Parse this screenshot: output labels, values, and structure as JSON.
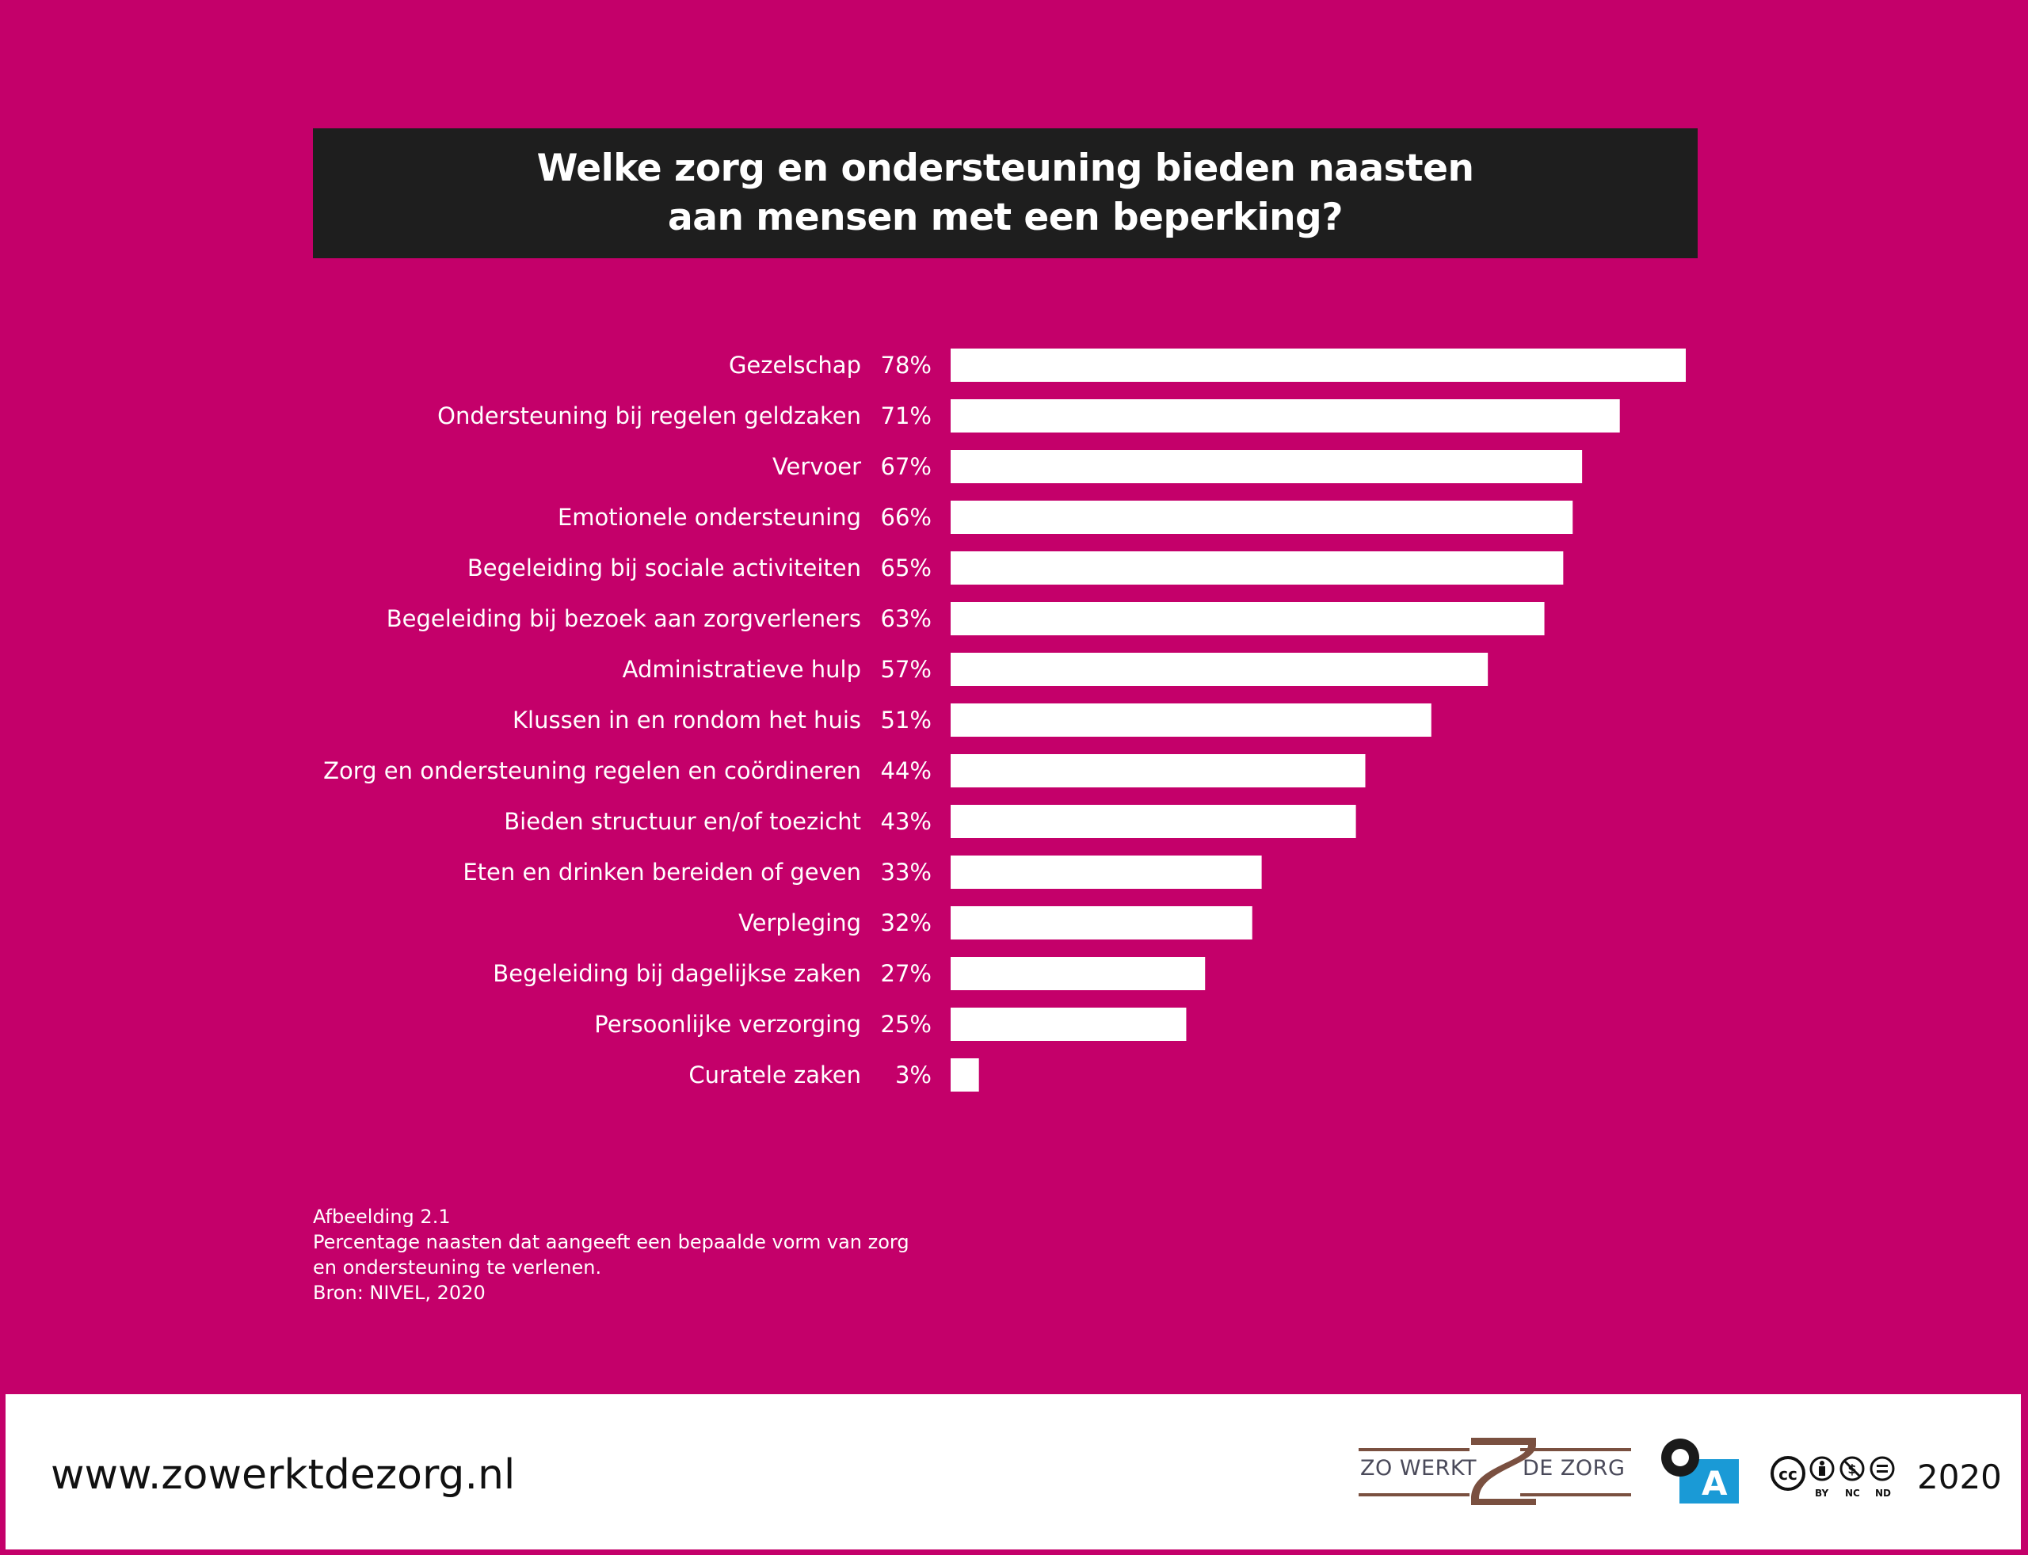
{
  "title": {
    "line1": "Welke zorg en ondersteuning bieden naasten",
    "line2": "aan mensen met een beperking?"
  },
  "chart_data": {
    "type": "bar",
    "orientation": "horizontal",
    "categories": [
      "Gezelschap",
      "Ondersteuning bij regelen geldzaken",
      "Vervoer",
      "Emotionele ondersteuning",
      "Begeleiding bij sociale activiteiten",
      "Begeleiding bij bezoek aan zorgverleners",
      "Administratieve hulp",
      "Klussen in en rondom het huis",
      "Zorg en ondersteuning regelen en coördineren",
      "Bieden structuur en/of toezicht",
      "Eten en drinken bereiden of geven",
      "Verpleging",
      "Begeleiding bij dagelijkse zaken",
      "Persoonlijke verzorging",
      "Curatele zaken"
    ],
    "values": [
      78,
      71,
      67,
      66,
      65,
      63,
      57,
      51,
      44,
      43,
      33,
      32,
      27,
      25,
      3
    ],
    "value_labels": [
      "78%",
      "71%",
      "67%",
      "66%",
      "65%",
      "63%",
      "57%",
      "51%",
      "44%",
      "43%",
      "33%",
      "32%",
      "27%",
      "25%",
      "3%"
    ],
    "unit": "%",
    "xlim": [
      0,
      78
    ],
    "grid": false,
    "bar_color": "#ffffff",
    "background_color": "#c4006a"
  },
  "caption": {
    "line1": "Afbeelding 2.1",
    "line2": "Percentage naasten dat aangeeft een bepaalde vorm van zorg",
    "line3": "en ondersteuning te verlenen.",
    "line4": "Bron: NIVEL, 2020"
  },
  "footer": {
    "url": "www.zowerktdezorg.nl",
    "logo_left_text": "ZO WERKT",
    "logo_right_text": "DE ZORG",
    "oa_letter": "A",
    "cc_labels": [
      "BY",
      "NC",
      "ND"
    ],
    "year": "2020",
    "logo_brown": "#7a5040",
    "oa_blue": "#1a9ad6"
  }
}
